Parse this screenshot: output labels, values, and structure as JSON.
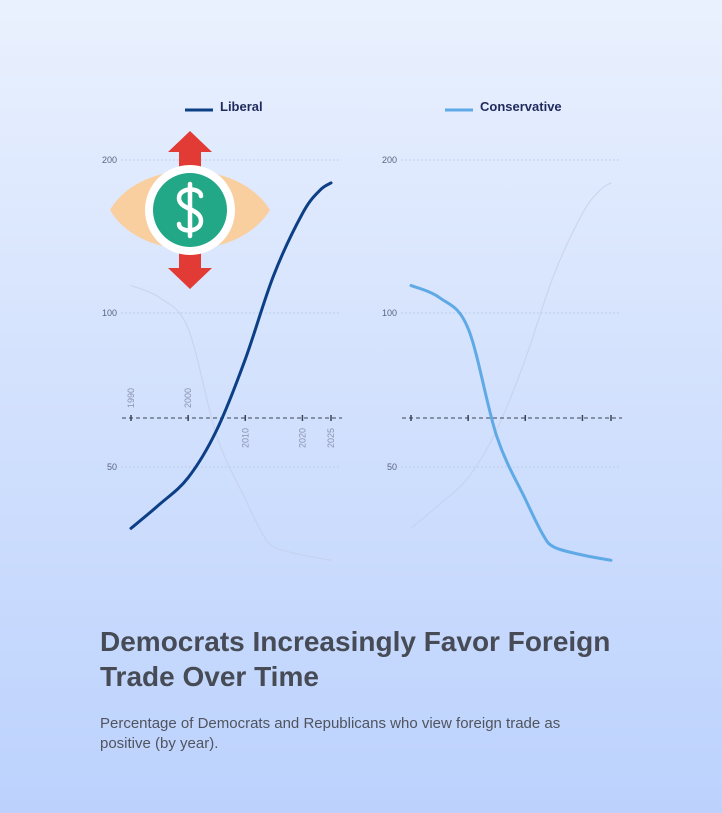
{
  "chart_data": {
    "type": "line",
    "title": "Democrats Increasingly Favor Foreign Trade Over Time",
    "subtitle": "Percentage of Democrats and Republicans who view foreign trade as positive (by year).",
    "y_ticks": [
      200,
      100,
      50
    ],
    "x_ticks": [
      1990,
      2000,
      2010,
      2020,
      2025
    ],
    "ylim": [
      20,
      200
    ],
    "xlim": [
      1990,
      2025
    ],
    "grid": true,
    "legend_position": "top",
    "series": [
      {
        "name": "Liberal",
        "color": "#0c3f86",
        "x": [
          1990,
          1995,
          2000,
          2005,
          2010,
          2015,
          2020,
          2023,
          2025
        ],
        "y": [
          27,
          36,
          46,
          62,
          85,
          125,
          165,
          180,
          185
        ]
      },
      {
        "name": "Conservative",
        "color": "#5ea9e6",
        "x": [
          1990,
          1995,
          2000,
          2005,
          2010,
          2013,
          2015,
          2020,
          2025
        ],
        "y": [
          118,
          110,
          95,
          60,
          38,
          25,
          20,
          17,
          15
        ]
      }
    ]
  },
  "icon": {
    "name": "eye-dollar-icon",
    "arrow_color": "#e23a34",
    "coin_color": "#22a886",
    "eye_color": "#f9cfa0"
  }
}
